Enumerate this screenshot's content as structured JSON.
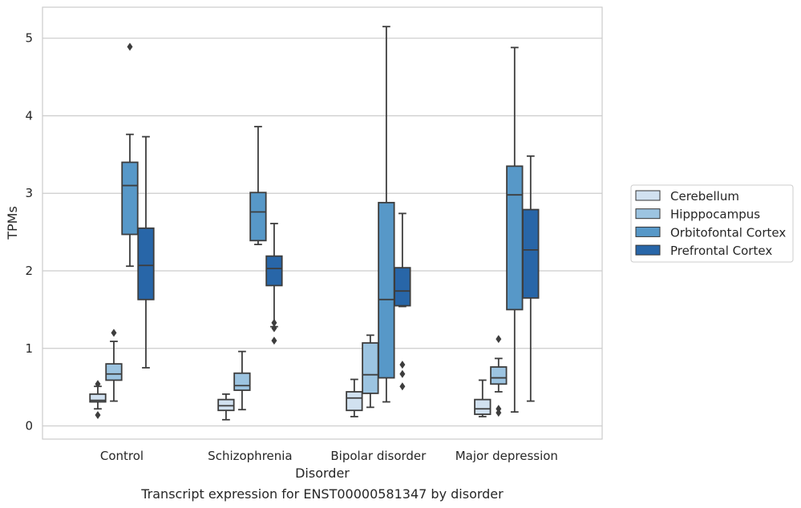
{
  "chart_data": {
    "type": "box",
    "title": "",
    "caption": "Transcript expression for ENST00000581347 by disorder",
    "xlabel": "Disorder",
    "ylabel": "TPMs",
    "ylim": [
      -0.17,
      5.4
    ],
    "yticks": [
      0,
      1,
      2,
      3,
      4,
      5
    ],
    "grid": "horizontal",
    "legend_position": "right",
    "categories": [
      "Control",
      "Schizophrenia",
      "Bipolar disorder",
      "Major depression"
    ],
    "series": [
      {
        "name": "Cerebellum",
        "color": "#d1e1f0",
        "boxes": [
          {
            "whislo": 0.22,
            "q1": 0.31,
            "med": 0.33,
            "q3": 0.41,
            "whishi": 0.51,
            "fliers": [
              0.54,
              0.14
            ]
          },
          {
            "whislo": 0.08,
            "q1": 0.2,
            "med": 0.26,
            "q3": 0.34,
            "whishi": 0.41,
            "fliers": []
          },
          {
            "whislo": 0.12,
            "q1": 0.2,
            "med": 0.36,
            "q3": 0.44,
            "whishi": 0.6,
            "fliers": []
          },
          {
            "whislo": 0.12,
            "q1": 0.15,
            "med": 0.22,
            "q3": 0.34,
            "whishi": 0.59,
            "fliers": []
          }
        ]
      },
      {
        "name": "Hipppocampus",
        "color": "#9cc4e1",
        "boxes": [
          {
            "whislo": 0.32,
            "q1": 0.59,
            "med": 0.67,
            "q3": 0.8,
            "whishi": 1.09,
            "fliers": [
              1.2
            ]
          },
          {
            "whislo": 0.21,
            "q1": 0.46,
            "med": 0.52,
            "q3": 0.68,
            "whishi": 0.96,
            "fliers": []
          },
          {
            "whislo": 0.24,
            "q1": 0.42,
            "med": 0.66,
            "q3": 1.07,
            "whishi": 1.17,
            "fliers": []
          },
          {
            "whislo": 0.44,
            "q1": 0.54,
            "med": 0.62,
            "q3": 0.76,
            "whishi": 0.87,
            "fliers": [
              1.12,
              0.22,
              0.17
            ]
          }
        ]
      },
      {
        "name": "Orbitofontal Cortex",
        "color": "#5798c8",
        "boxes": [
          {
            "whislo": 2.06,
            "q1": 2.47,
            "med": 3.1,
            "q3": 3.4,
            "whishi": 3.76,
            "fliers": [
              4.89
            ]
          },
          {
            "whislo": 2.34,
            "q1": 2.39,
            "med": 2.76,
            "q3": 3.01,
            "whishi": 3.86,
            "fliers": []
          },
          {
            "whislo": 0.31,
            "q1": 0.62,
            "med": 1.63,
            "q3": 2.88,
            "whishi": 5.15,
            "fliers": []
          },
          {
            "whislo": 0.18,
            "q1": 1.5,
            "med": 2.98,
            "q3": 3.35,
            "whishi": 4.88,
            "fliers": []
          }
        ]
      },
      {
        "name": "Prefrontal Cortex",
        "color": "#2866a8",
        "boxes": [
          {
            "whislo": 0.75,
            "q1": 1.63,
            "med": 2.07,
            "q3": 2.55,
            "whishi": 3.73,
            "fliers": []
          },
          {
            "whislo": 1.28,
            "q1": 1.81,
            "med": 2.03,
            "q3": 2.19,
            "whishi": 2.61,
            "fliers": [
              1.33,
              1.26,
              1.1
            ]
          },
          {
            "whislo": 1.54,
            "q1": 1.55,
            "med": 1.74,
            "q3": 2.04,
            "whishi": 2.74,
            "fliers": [
              0.79,
              0.67,
              0.51
            ]
          },
          {
            "whislo": 0.32,
            "q1": 1.65,
            "med": 2.27,
            "q3": 2.79,
            "whishi": 3.48,
            "fliers": []
          }
        ]
      }
    ]
  }
}
